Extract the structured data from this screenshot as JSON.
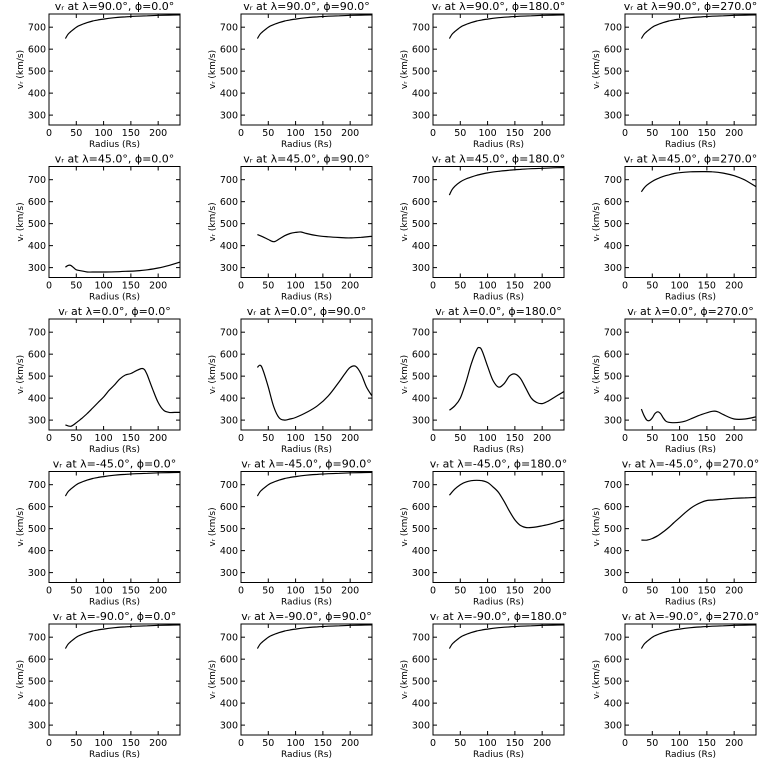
{
  "chart_data": [
    {
      "type": "line",
      "title": "vᵣ at λ=90.0°, ϕ=0.0°",
      "xlabel": "Radius (Rs)",
      "ylabel": "vᵣ (km/s)",
      "xlim": [
        0,
        240
      ],
      "ylim": [
        255,
        760
      ],
      "xticks": [
        0,
        50,
        100,
        150,
        200
      ],
      "yticks": [
        300,
        400,
        500,
        600,
        700
      ],
      "x": [
        30,
        35,
        40,
        50,
        60,
        70,
        80,
        90,
        100,
        120,
        140,
        160,
        180,
        200,
        220,
        240
      ],
      "y": [
        648,
        668,
        680,
        700,
        712,
        721,
        728,
        733,
        737,
        743,
        747,
        750,
        752,
        754,
        755,
        756
      ]
    },
    {
      "type": "line",
      "title": "vᵣ at λ=90.0°, ϕ=90.0°",
      "xlabel": "Radius (Rs)",
      "ylabel": "vᵣ (km/s)",
      "xlim": [
        0,
        240
      ],
      "ylim": [
        255,
        760
      ],
      "xticks": [
        0,
        50,
        100,
        150,
        200
      ],
      "yticks": [
        300,
        400,
        500,
        600,
        700
      ],
      "x": [
        30,
        35,
        40,
        50,
        60,
        70,
        80,
        90,
        100,
        120,
        140,
        160,
        180,
        200,
        220,
        240
      ],
      "y": [
        648,
        668,
        680,
        700,
        712,
        721,
        728,
        733,
        737,
        743,
        747,
        750,
        752,
        754,
        755,
        756
      ]
    },
    {
      "type": "line",
      "title": "vᵣ at λ=90.0°, ϕ=180.0°",
      "xlabel": "Radius (Rs)",
      "ylabel": "vᵣ (km/s)",
      "xlim": [
        0,
        240
      ],
      "ylim": [
        255,
        760
      ],
      "xticks": [
        0,
        50,
        100,
        150,
        200
      ],
      "yticks": [
        300,
        400,
        500,
        600,
        700
      ],
      "x": [
        30,
        35,
        40,
        50,
        60,
        70,
        80,
        90,
        100,
        120,
        140,
        160,
        180,
        200,
        220,
        240
      ],
      "y": [
        648,
        668,
        680,
        700,
        712,
        721,
        728,
        733,
        737,
        743,
        747,
        750,
        752,
        754,
        755,
        756
      ]
    },
    {
      "type": "line",
      "title": "vᵣ at λ=90.0°, ϕ=270.0°",
      "xlabel": "Radius (Rs)",
      "ylabel": "vᵣ (km/s)",
      "xlim": [
        0,
        240
      ],
      "ylim": [
        255,
        760
      ],
      "xticks": [
        0,
        50,
        100,
        150,
        200
      ],
      "yticks": [
        300,
        400,
        500,
        600,
        700
      ],
      "x": [
        30,
        35,
        40,
        50,
        60,
        70,
        80,
        90,
        100,
        120,
        140,
        160,
        180,
        200,
        220,
        240
      ],
      "y": [
        648,
        668,
        680,
        700,
        712,
        721,
        728,
        733,
        737,
        743,
        747,
        750,
        752,
        754,
        755,
        756
      ]
    },
    {
      "type": "line",
      "title": "vᵣ at λ=45.0°, ϕ=0.0°",
      "xlabel": "Radius (Rs)",
      "ylabel": "vᵣ (km/s)",
      "xlim": [
        0,
        240
      ],
      "ylim": [
        255,
        760
      ],
      "xticks": [
        0,
        50,
        100,
        150,
        200
      ],
      "yticks": [
        300,
        400,
        500,
        600,
        700
      ],
      "x": [
        30,
        35,
        40,
        45,
        50,
        60,
        70,
        80,
        100,
        120,
        140,
        160,
        180,
        200,
        220,
        240
      ],
      "y": [
        302,
        310,
        310,
        300,
        290,
        285,
        280,
        280,
        280,
        281,
        283,
        285,
        290,
        298,
        310,
        325
      ]
    },
    {
      "type": "line",
      "title": "vᵣ at λ=45.0°, ϕ=90.0°",
      "xlabel": "Radius (Rs)",
      "ylabel": "vᵣ (km/s)",
      "xlim": [
        0,
        240
      ],
      "ylim": [
        255,
        760
      ],
      "xticks": [
        0,
        50,
        100,
        150,
        200
      ],
      "yticks": [
        300,
        400,
        500,
        600,
        700
      ],
      "x": [
        30,
        40,
        50,
        60,
        70,
        80,
        90,
        100,
        110,
        120,
        140,
        160,
        180,
        200,
        220,
        240
      ],
      "y": [
        450,
        440,
        428,
        418,
        430,
        445,
        455,
        460,
        462,
        455,
        445,
        440,
        437,
        435,
        438,
        442
      ]
    },
    {
      "type": "line",
      "title": "vᵣ at λ=45.0°, ϕ=180.0°",
      "xlabel": "Radius (Rs)",
      "ylabel": "vᵣ (km/s)",
      "xlim": [
        0,
        240
      ],
      "ylim": [
        255,
        760
      ],
      "xticks": [
        0,
        50,
        100,
        150,
        200
      ],
      "yticks": [
        300,
        400,
        500,
        600,
        700
      ],
      "x": [
        30,
        35,
        40,
        50,
        60,
        70,
        80,
        90,
        100,
        120,
        140,
        160,
        180,
        200,
        220,
        240
      ],
      "y": [
        630,
        655,
        670,
        690,
        703,
        712,
        720,
        726,
        731,
        738,
        743,
        747,
        750,
        752,
        754,
        755
      ]
    },
    {
      "type": "line",
      "title": "vᵣ at λ=45.0°, ϕ=270.0°",
      "xlabel": "Radius (Rs)",
      "ylabel": "vᵣ (km/s)",
      "xlim": [
        0,
        240
      ],
      "ylim": [
        255,
        760
      ],
      "xticks": [
        0,
        50,
        100,
        150,
        200
      ],
      "yticks": [
        300,
        400,
        500,
        600,
        700
      ],
      "x": [
        30,
        35,
        40,
        50,
        60,
        70,
        80,
        90,
        100,
        120,
        140,
        160,
        180,
        200,
        220,
        240
      ],
      "y": [
        645,
        662,
        675,
        692,
        705,
        715,
        722,
        728,
        732,
        736,
        737,
        736,
        730,
        718,
        698,
        668
      ]
    },
    {
      "type": "line",
      "title": "vᵣ at λ=0.0°, ϕ=0.0°",
      "xlabel": "Radius (Rs)",
      "ylabel": "vᵣ (km/s)",
      "xlim": [
        0,
        240
      ],
      "ylim": [
        255,
        760
      ],
      "xticks": [
        0,
        50,
        100,
        150,
        200
      ],
      "yticks": [
        300,
        400,
        500,
        600,
        700
      ],
      "x": [
        30,
        40,
        50,
        60,
        70,
        80,
        90,
        100,
        110,
        120,
        130,
        140,
        150,
        160,
        170,
        175,
        180,
        190,
        200,
        210,
        220,
        230,
        240
      ],
      "y": [
        278,
        272,
        288,
        308,
        330,
        355,
        380,
        405,
        435,
        460,
        488,
        505,
        512,
        525,
        535,
        530,
        505,
        440,
        380,
        345,
        335,
        335,
        335
      ]
    },
    {
      "type": "line",
      "title": "vᵣ at λ=0.0°, ϕ=90.0°",
      "xlabel": "Radius (Rs)",
      "ylabel": "vᵣ (km/s)",
      "xlim": [
        0,
        240
      ],
      "ylim": [
        255,
        760
      ],
      "xticks": [
        0,
        50,
        100,
        150,
        200
      ],
      "yticks": [
        300,
        400,
        500,
        600,
        700
      ],
      "x": [
        30,
        35,
        40,
        50,
        60,
        70,
        80,
        90,
        100,
        120,
        140,
        160,
        180,
        190,
        200,
        210,
        220,
        230,
        240
      ],
      "y": [
        540,
        550,
        530,
        450,
        360,
        310,
        300,
        305,
        312,
        335,
        365,
        410,
        475,
        510,
        540,
        545,
        510,
        450,
        410
      ]
    },
    {
      "type": "line",
      "title": "vᵣ at λ=0.0°, ϕ=180.0°",
      "xlabel": "Radius (Rs)",
      "ylabel": "vᵣ (km/s)",
      "xlim": [
        0,
        240
      ],
      "ylim": [
        255,
        760
      ],
      "xticks": [
        0,
        50,
        100,
        150,
        200
      ],
      "yticks": [
        300,
        400,
        500,
        600,
        700
      ],
      "x": [
        30,
        40,
        50,
        60,
        70,
        80,
        85,
        90,
        100,
        110,
        120,
        130,
        140,
        150,
        160,
        170,
        180,
        190,
        200,
        210,
        220,
        230,
        240
      ],
      "y": [
        345,
        365,
        400,
        470,
        555,
        620,
        630,
        615,
        545,
        480,
        450,
        465,
        500,
        510,
        490,
        445,
        400,
        380,
        375,
        385,
        400,
        415,
        430
      ]
    },
    {
      "type": "line",
      "title": "vᵣ at λ=0.0°, ϕ=270.0°",
      "xlabel": "Radius (Rs)",
      "ylabel": "vᵣ (km/s)",
      "xlim": [
        0,
        240
      ],
      "ylim": [
        255,
        760
      ],
      "xticks": [
        0,
        50,
        100,
        150,
        200
      ],
      "yticks": [
        300,
        400,
        500,
        600,
        700
      ],
      "x": [
        30,
        35,
        40,
        45,
        50,
        55,
        60,
        65,
        70,
        75,
        80,
        90,
        100,
        110,
        120,
        140,
        160,
        170,
        180,
        200,
        220,
        240
      ],
      "y": [
        350,
        320,
        300,
        298,
        310,
        330,
        338,
        330,
        310,
        295,
        290,
        288,
        290,
        295,
        305,
        325,
        340,
        338,
        325,
        305,
        305,
        315
      ]
    },
    {
      "type": "line",
      "title": "vᵣ at λ=-45.0°, ϕ=0.0°",
      "xlabel": "Radius (Rs)",
      "ylabel": "vᵣ (km/s)",
      "xlim": [
        0,
        240
      ],
      "ylim": [
        255,
        760
      ],
      "xticks": [
        0,
        50,
        100,
        150,
        200
      ],
      "yticks": [
        300,
        400,
        500,
        600,
        700
      ],
      "x": [
        30,
        35,
        40,
        50,
        60,
        70,
        80,
        90,
        100,
        120,
        140,
        160,
        180,
        200,
        220,
        240
      ],
      "y": [
        648,
        668,
        680,
        700,
        712,
        721,
        728,
        733,
        737,
        743,
        747,
        750,
        752,
        754,
        755,
        756
      ]
    },
    {
      "type": "line",
      "title": "vᵣ at λ=-45.0°, ϕ=90.0°",
      "xlabel": "Radius (Rs)",
      "ylabel": "vᵣ (km/s)",
      "xlim": [
        0,
        240
      ],
      "ylim": [
        255,
        760
      ],
      "xticks": [
        0,
        50,
        100,
        150,
        200
      ],
      "yticks": [
        300,
        400,
        500,
        600,
        700
      ],
      "x": [
        30,
        35,
        40,
        50,
        60,
        70,
        80,
        90,
        100,
        120,
        140,
        160,
        180,
        200,
        220,
        240
      ],
      "y": [
        648,
        668,
        680,
        700,
        712,
        721,
        728,
        733,
        737,
        743,
        747,
        750,
        752,
        754,
        755,
        756
      ]
    },
    {
      "type": "line",
      "title": "vᵣ at λ=-45.0°, ϕ=180.0°",
      "xlabel": "Radius (Rs)",
      "ylabel": "vᵣ (km/s)",
      "xlim": [
        0,
        240
      ],
      "ylim": [
        255,
        760
      ],
      "xticks": [
        0,
        50,
        100,
        150,
        200
      ],
      "yticks": [
        300,
        400,
        500,
        600,
        700
      ],
      "x": [
        30,
        40,
        50,
        60,
        70,
        80,
        90,
        100,
        110,
        120,
        130,
        140,
        150,
        160,
        170,
        180,
        190,
        200,
        210,
        220,
        230,
        240
      ],
      "y": [
        652,
        680,
        700,
        712,
        718,
        720,
        718,
        710,
        690,
        665,
        625,
        580,
        540,
        515,
        505,
        505,
        508,
        513,
        518,
        525,
        532,
        540
      ]
    },
    {
      "type": "line",
      "title": "vᵣ at λ=-45.0°, ϕ=270.0°",
      "xlabel": "Radius (Rs)",
      "ylabel": "vᵣ (km/s)",
      "xlim": [
        0,
        240
      ],
      "ylim": [
        255,
        760
      ],
      "xticks": [
        0,
        50,
        100,
        150,
        200
      ],
      "yticks": [
        300,
        400,
        500,
        600,
        700
      ],
      "x": [
        30,
        40,
        50,
        60,
        70,
        80,
        90,
        100,
        110,
        120,
        130,
        140,
        150,
        160,
        170,
        180,
        200,
        220,
        240
      ],
      "y": [
        448,
        448,
        455,
        468,
        485,
        505,
        528,
        550,
        572,
        592,
        608,
        620,
        628,
        630,
        632,
        634,
        638,
        640,
        642
      ]
    },
    {
      "type": "line",
      "title": "vᵣ at λ=-90.0°, ϕ=0.0°",
      "xlabel": "Radius (Rs)",
      "ylabel": "vᵣ (km/s)",
      "xlim": [
        0,
        240
      ],
      "ylim": [
        255,
        760
      ],
      "xticks": [
        0,
        50,
        100,
        150,
        200
      ],
      "yticks": [
        300,
        400,
        500,
        600,
        700
      ],
      "x": [
        30,
        35,
        40,
        50,
        60,
        70,
        80,
        90,
        100,
        120,
        140,
        160,
        180,
        200,
        220,
        240
      ],
      "y": [
        648,
        668,
        680,
        700,
        712,
        721,
        728,
        733,
        737,
        743,
        747,
        750,
        752,
        754,
        755,
        756
      ]
    },
    {
      "type": "line",
      "title": "vᵣ at λ=-90.0°, ϕ=90.0°",
      "xlabel": "Radius (Rs)",
      "ylabel": "vᵣ (km/s)",
      "xlim": [
        0,
        240
      ],
      "ylim": [
        255,
        760
      ],
      "xticks": [
        0,
        50,
        100,
        150,
        200
      ],
      "yticks": [
        300,
        400,
        500,
        600,
        700
      ],
      "x": [
        30,
        35,
        40,
        50,
        60,
        70,
        80,
        90,
        100,
        120,
        140,
        160,
        180,
        200,
        220,
        240
      ],
      "y": [
        648,
        668,
        680,
        700,
        712,
        721,
        728,
        733,
        737,
        743,
        747,
        750,
        752,
        754,
        755,
        756
      ]
    },
    {
      "type": "line",
      "title": "vᵣ at λ=-90.0°, ϕ=180.0°",
      "xlabel": "Radius (Rs)",
      "ylabel": "vᵣ (km/s)",
      "xlim": [
        0,
        240
      ],
      "ylim": [
        255,
        760
      ],
      "xticks": [
        0,
        50,
        100,
        150,
        200
      ],
      "yticks": [
        300,
        400,
        500,
        600,
        700
      ],
      "x": [
        30,
        35,
        40,
        50,
        60,
        70,
        80,
        90,
        100,
        120,
        140,
        160,
        180,
        200,
        220,
        240
      ],
      "y": [
        648,
        668,
        680,
        700,
        712,
        721,
        728,
        733,
        737,
        743,
        747,
        750,
        752,
        754,
        755,
        756
      ]
    },
    {
      "type": "line",
      "title": "vᵣ at λ=-90.0°, ϕ=270.0°",
      "xlabel": "Radius (Rs)",
      "ylabel": "vᵣ (km/s)",
      "xlim": [
        0,
        240
      ],
      "ylim": [
        255,
        760
      ],
      "xticks": [
        0,
        50,
        100,
        150,
        200
      ],
      "yticks": [
        300,
        400,
        500,
        600,
        700
      ],
      "x": [
        30,
        35,
        40,
        50,
        60,
        70,
        80,
        90,
        100,
        120,
        140,
        160,
        180,
        200,
        220,
        240
      ],
      "y": [
        648,
        668,
        680,
        700,
        712,
        721,
        728,
        733,
        737,
        743,
        747,
        750,
        752,
        754,
        755,
        756
      ]
    }
  ]
}
